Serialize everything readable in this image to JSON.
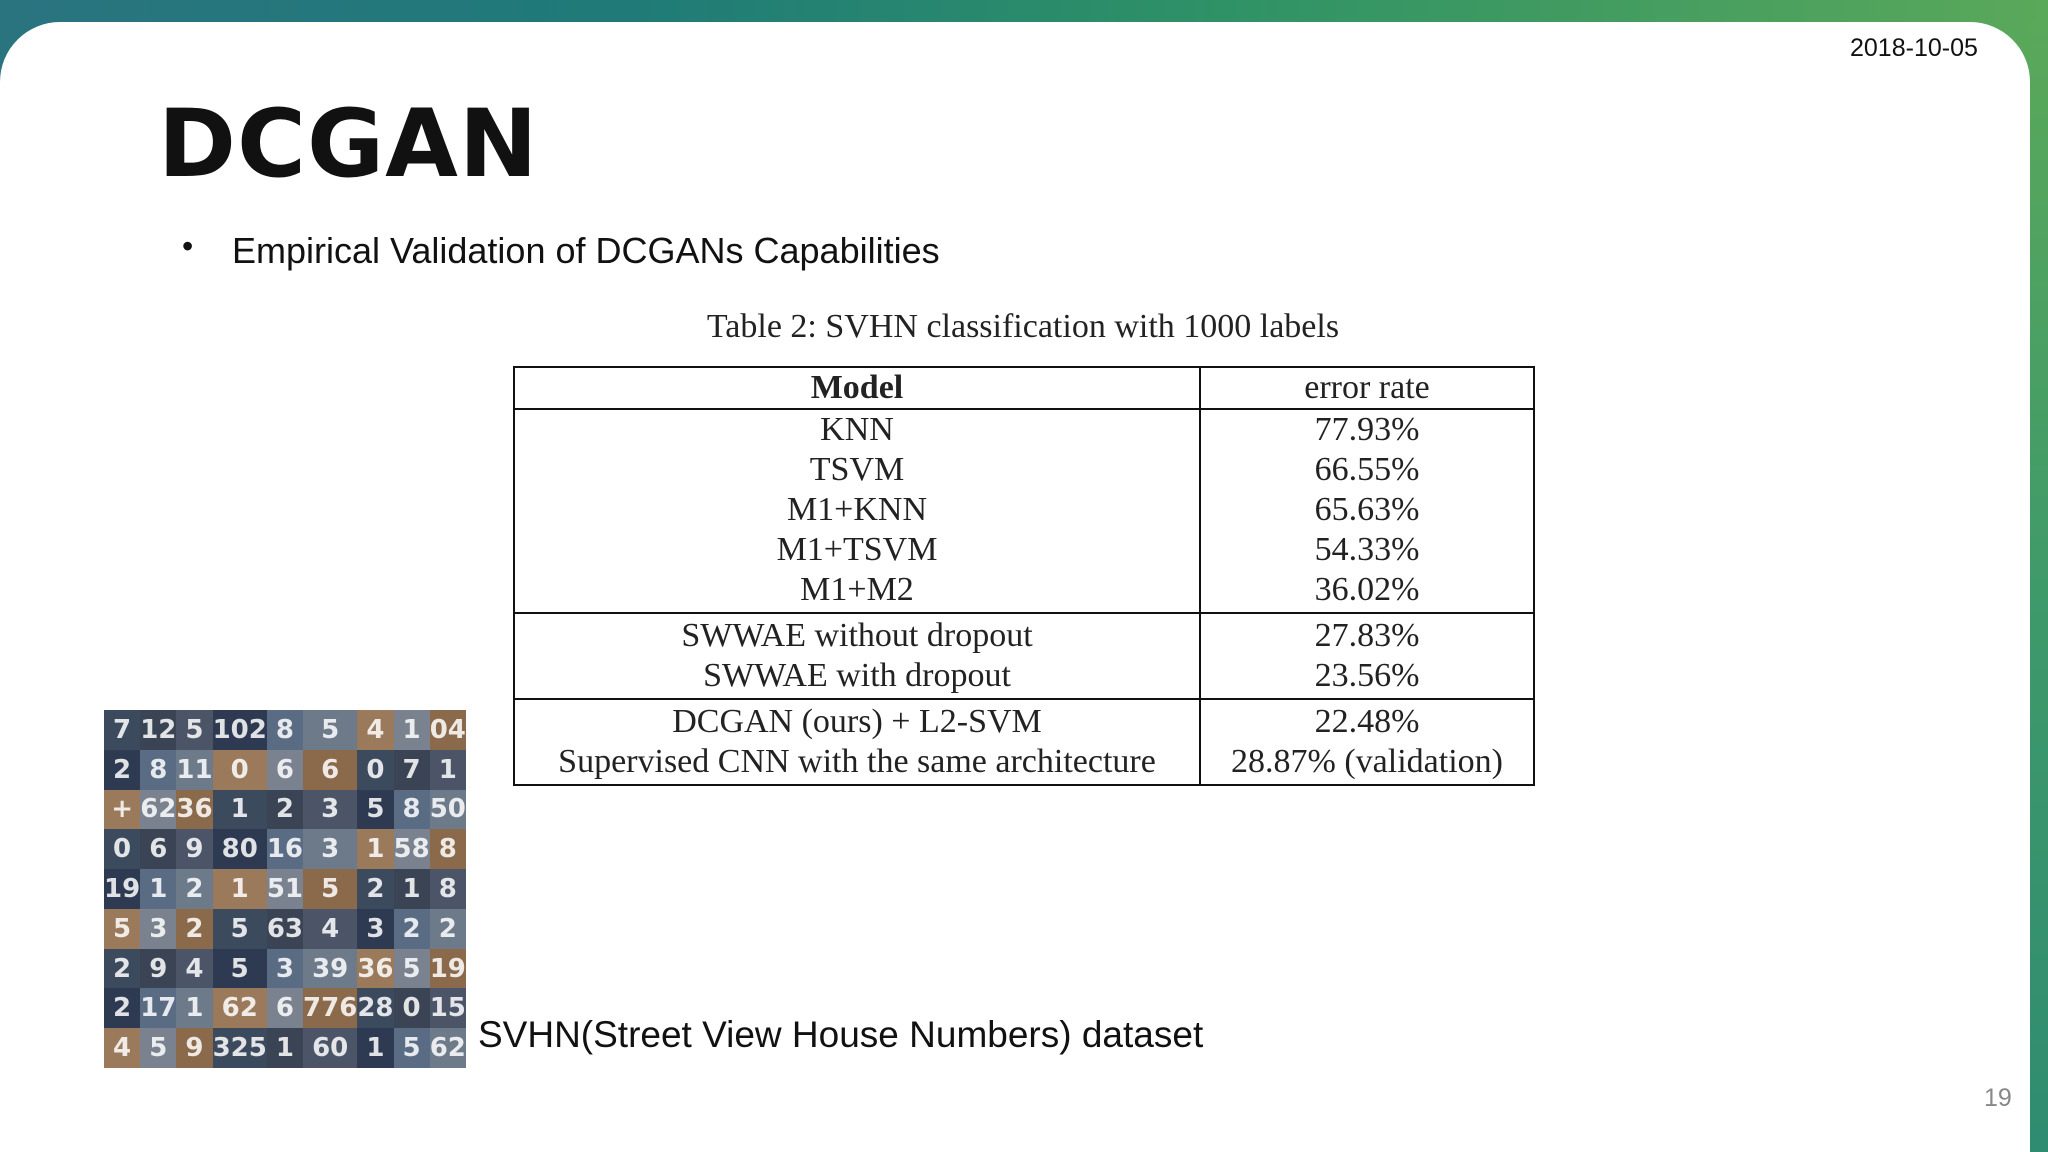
{
  "header": {
    "date": "2018-10-05"
  },
  "slide": {
    "title": "DCGAN",
    "bullet": "Empirical Validation of DCGANs Capabilities",
    "page_number": "19"
  },
  "table": {
    "caption": "Table 2: SVHN classification with 1000 labels",
    "columns": [
      "Model",
      "error rate"
    ],
    "groups": [
      [
        {
          "model": "KNN",
          "error": "77.93%"
        },
        {
          "model": "TSVM",
          "error": "66.55%"
        },
        {
          "model": "M1+KNN",
          "error": "65.63%"
        },
        {
          "model": "M1+TSVM",
          "error": "54.33%"
        },
        {
          "model": "M1+M2",
          "error": "36.02%"
        }
      ],
      [
        {
          "model": "SWWAE without dropout",
          "error": "27.83%"
        },
        {
          "model": "SWWAE with dropout",
          "error": "23.56%"
        }
      ],
      [
        {
          "model": "DCGAN (ours) + L2-SVM",
          "error": "22.48%"
        },
        {
          "model": "Supervised CNN with the same architecture",
          "error": "28.87% (validation)"
        }
      ]
    ]
  },
  "figure": {
    "caption": "SVHN(Street View House Numbers) dataset",
    "tiles": [
      "7",
      "12",
      "5",
      "102",
      "8",
      "5",
      "4",
      "1",
      "04",
      "2",
      "8",
      "11",
      "0",
      "6",
      "6",
      "0",
      "7",
      "1",
      "+",
      "62",
      "36",
      "1",
      "2",
      "3",
      "5",
      "8",
      "50",
      "0",
      "6",
      "9",
      "80",
      "16",
      "3",
      "1",
      "58",
      "8",
      "19",
      "1",
      "2",
      "1",
      "51",
      "5",
      "2",
      "1",
      "8",
      "5",
      "3",
      "2",
      "5",
      "63",
      "4",
      "3",
      "2",
      "2",
      "2",
      "9",
      "4",
      "5",
      "3",
      "39",
      "36",
      "5",
      "19",
      "2",
      "17",
      "1",
      "62",
      "6",
      "776",
      "28",
      "0",
      "15",
      "4",
      "5",
      "9",
      "325",
      "1",
      "60",
      "1",
      "5",
      "62"
    ],
    "tile_colors": [
      "#3c4a5e",
      "#5a6c84",
      "#8a6a4a",
      "#2e3a52",
      "#7a8290",
      "#4c5568",
      "#9a7a5a",
      "#3a4454",
      "#6c7a8a"
    ]
  }
}
